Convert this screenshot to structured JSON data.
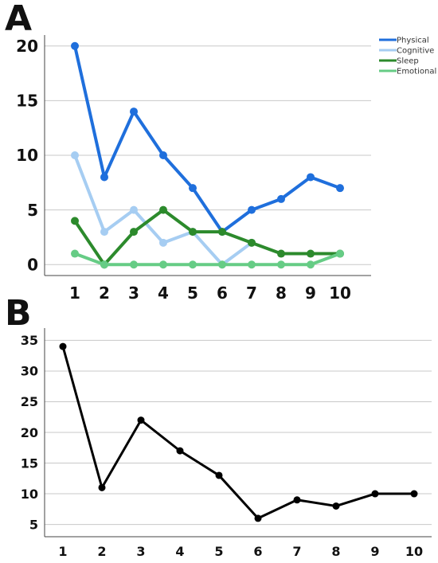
{
  "panels": {
    "a_label": "A",
    "b_label": "B"
  },
  "chart_data": [
    {
      "type": "line",
      "panel": "A",
      "title": "",
      "xlabel": "",
      "ylabel": "",
      "x": [
        1,
        2,
        3,
        4,
        5,
        6,
        7,
        8,
        9,
        10
      ],
      "ylim": [
        -1,
        21
      ],
      "yticks": [
        0,
        5,
        10,
        15,
        20
      ],
      "grid": true,
      "legend": "top-right",
      "series": [
        {
          "name": "Physical",
          "color": "#1f6fdc",
          "values": [
            20,
            8,
            14,
            10,
            7,
            3,
            5,
            6,
            8,
            7
          ]
        },
        {
          "name": "Cognitive",
          "color": "#a6cdf2",
          "values": [
            10,
            3,
            5,
            2,
            3,
            0,
            2,
            null,
            null,
            null
          ]
        },
        {
          "name": "Sleep",
          "color": "#2c8a2c",
          "values": [
            4,
            0,
            3,
            5,
            3,
            3,
            2,
            1,
            1,
            1
          ]
        },
        {
          "name": "Emotional",
          "color": "#66cc85",
          "values": [
            1,
            0,
            0,
            0,
            0,
            0,
            0,
            0,
            0,
            1
          ]
        }
      ]
    },
    {
      "type": "line",
      "panel": "B",
      "title": "",
      "xlabel": "",
      "ylabel": "",
      "x": [
        1,
        2,
        3,
        4,
        5,
        6,
        7,
        8,
        9,
        10
      ],
      "ylim": [
        3,
        37
      ],
      "yticks": [
        5,
        10,
        15,
        20,
        25,
        30,
        35
      ],
      "grid": true,
      "series": [
        {
          "color": "#000000",
          "values": [
            34,
            11,
            22,
            17,
            13,
            6,
            9,
            8,
            10,
            10
          ]
        }
      ]
    }
  ]
}
